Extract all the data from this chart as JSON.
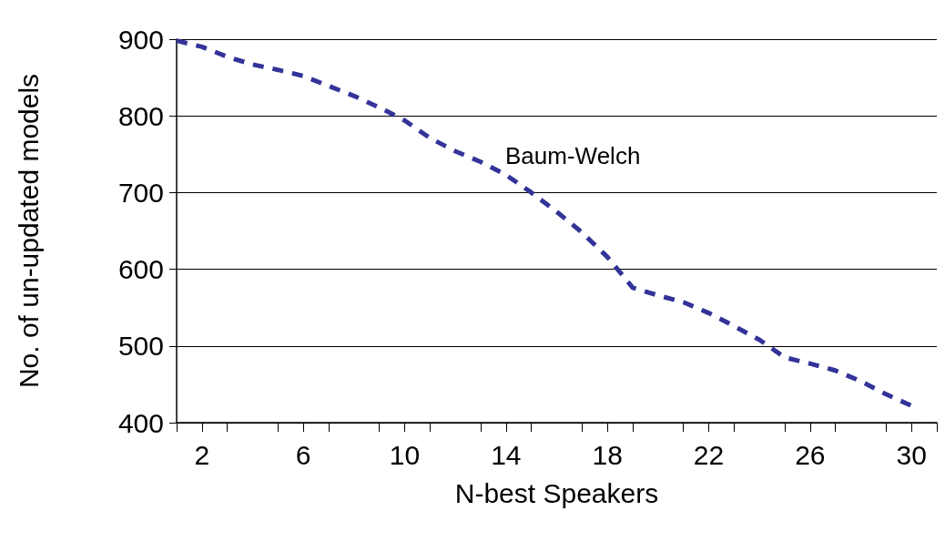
{
  "chart_data": {
    "type": "line",
    "xlabel": "N-best Speakers",
    "ylabel": "No. of un-updated models",
    "x": [
      1,
      2,
      3,
      4,
      5,
      6,
      7,
      8,
      9,
      10,
      11,
      12,
      13,
      14,
      15,
      16,
      17,
      18,
      19,
      20,
      21,
      22,
      23,
      24,
      25,
      26,
      27,
      28,
      29,
      30
    ],
    "series": [
      {
        "color": "#333399",
        "values": [
          898,
          890,
          877,
          867,
          860,
          852,
          839,
          826,
          811,
          794,
          771,
          754,
          740,
          723,
          700,
          675,
          648,
          616,
          576,
          566,
          557,
          543,
          526,
          508,
          485,
          477,
          468,
          454,
          437,
          422
        ]
      }
    ],
    "xlim": [
      1,
      31
    ],
    "xticks": [
      {
        "value": 1,
        "label": null
      },
      2,
      {
        "value": 3,
        "label": null
      },
      {
        "value": 5,
        "label": null
      },
      6,
      {
        "value": 7,
        "label": null
      },
      {
        "value": 9,
        "label": null
      },
      10,
      {
        "value": 11,
        "label": null
      },
      {
        "value": 13,
        "label": null
      },
      14,
      {
        "value": 15,
        "label": null
      },
      {
        "value": 17,
        "label": null
      },
      18,
      {
        "value": 19,
        "label": null
      },
      {
        "value": 21,
        "label": null
      },
      22,
      {
        "value": 23,
        "label": null
      },
      {
        "value": 25,
        "label": null
      },
      26,
      {
        "value": 27,
        "label": null
      },
      {
        "value": 29,
        "label": null
      },
      30,
      {
        "value": 31,
        "label": null
      }
    ],
    "ylim": [
      400,
      900
    ],
    "yticks": [
      400,
      500,
      600,
      700,
      800,
      900
    ],
    "grid": "y",
    "marker": "none",
    "line_style": "dashed",
    "annotations": [
      "Baum-Welch"
    ]
  }
}
